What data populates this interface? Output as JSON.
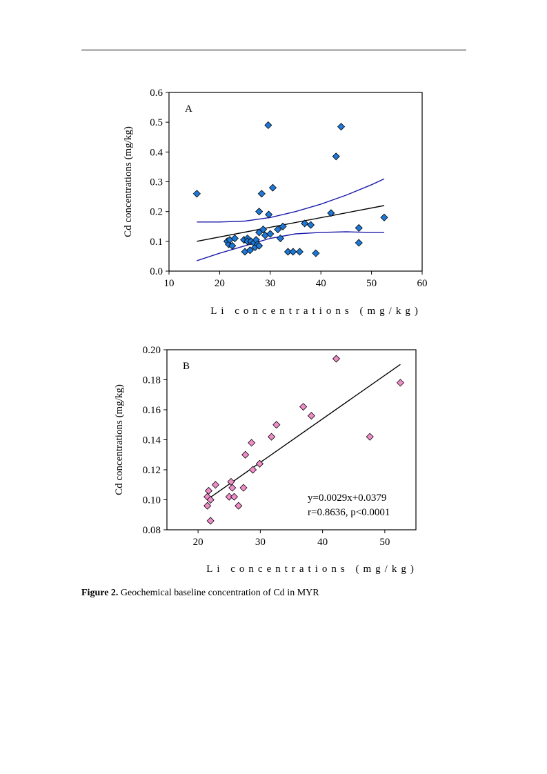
{
  "caption": {
    "label": "Figure 2.",
    "text": " Geochemical baseline concentration of Cd in MYR"
  },
  "chart_data": [
    {
      "type": "scatter",
      "panel_label": "A",
      "xlabel": "Li concentrations (mg/kg)",
      "ylabel": "Cd concentrations (mg/kg)",
      "xlim": [
        10,
        60
      ],
      "ylim": [
        0.0,
        0.6
      ],
      "xticks": [
        "10",
        "20",
        "30",
        "40",
        "50",
        "60"
      ],
      "yticks": [
        "0.0",
        "0.1",
        "0.2",
        "0.3",
        "0.4",
        "0.5",
        "0.6"
      ],
      "marker_color": "#1e78d6",
      "points": [
        {
          "x": 15.5,
          "y": 0.26
        },
        {
          "x": 21.5,
          "y": 0.1
        },
        {
          "x": 21.8,
          "y": 0.09
        },
        {
          "x": 22.0,
          "y": 0.105
        },
        {
          "x": 22.5,
          "y": 0.085
        },
        {
          "x": 23.0,
          "y": 0.11
        },
        {
          "x": 24.8,
          "y": 0.105
        },
        {
          "x": 25.0,
          "y": 0.065
        },
        {
          "x": 25.5,
          "y": 0.11
        },
        {
          "x": 25.5,
          "y": 0.1
        },
        {
          "x": 26.0,
          "y": 0.07
        },
        {
          "x": 26.2,
          "y": 0.1
        },
        {
          "x": 26.8,
          "y": 0.095
        },
        {
          "x": 27.0,
          "y": 0.08
        },
        {
          "x": 27.2,
          "y": 0.105
        },
        {
          "x": 27.5,
          "y": 0.09
        },
        {
          "x": 27.8,
          "y": 0.085
        },
        {
          "x": 27.8,
          "y": 0.13
        },
        {
          "x": 27.8,
          "y": 0.2
        },
        {
          "x": 28.3,
          "y": 0.26
        },
        {
          "x": 28.6,
          "y": 0.14
        },
        {
          "x": 29.0,
          "y": 0.12
        },
        {
          "x": 29.6,
          "y": 0.49
        },
        {
          "x": 29.7,
          "y": 0.19
        },
        {
          "x": 30.0,
          "y": 0.125
        },
        {
          "x": 30.5,
          "y": 0.28
        },
        {
          "x": 31.5,
          "y": 0.14
        },
        {
          "x": 32.0,
          "y": 0.11
        },
        {
          "x": 32.5,
          "y": 0.15
        },
        {
          "x": 33.5,
          "y": 0.065
        },
        {
          "x": 34.5,
          "y": 0.065
        },
        {
          "x": 35.8,
          "y": 0.065
        },
        {
          "x": 36.8,
          "y": 0.16
        },
        {
          "x": 38.0,
          "y": 0.155
        },
        {
          "x": 39.0,
          "y": 0.06
        },
        {
          "x": 42.0,
          "y": 0.195
        },
        {
          "x": 43.0,
          "y": 0.385
        },
        {
          "x": 44.0,
          "y": 0.485
        },
        {
          "x": 47.5,
          "y": 0.145
        },
        {
          "x": 47.5,
          "y": 0.095
        },
        {
          "x": 52.5,
          "y": 0.18
        }
      ],
      "fit_line": [
        {
          "x": 15.5,
          "y": 0.1
        },
        {
          "x": 52.5,
          "y": 0.22
        }
      ],
      "upper_band": [
        {
          "x": 15.5,
          "y": 0.165
        },
        {
          "x": 20,
          "y": 0.165
        },
        {
          "x": 25,
          "y": 0.168
        },
        {
          "x": 30,
          "y": 0.18
        },
        {
          "x": 35,
          "y": 0.2
        },
        {
          "x": 40,
          "y": 0.225
        },
        {
          "x": 45,
          "y": 0.255
        },
        {
          "x": 50,
          "y": 0.29
        },
        {
          "x": 52.5,
          "y": 0.31
        }
      ],
      "lower_band": [
        {
          "x": 15.5,
          "y": 0.035
        },
        {
          "x": 20,
          "y": 0.06
        },
        {
          "x": 25,
          "y": 0.085
        },
        {
          "x": 30,
          "y": 0.11
        },
        {
          "x": 35,
          "y": 0.125
        },
        {
          "x": 40,
          "y": 0.13
        },
        {
          "x": 45,
          "y": 0.132
        },
        {
          "x": 50,
          "y": 0.13
        },
        {
          "x": 52.5,
          "y": 0.13
        }
      ],
      "line_color": "#000000",
      "band_color": "#1a1aaa"
    },
    {
      "type": "scatter",
      "panel_label": "B",
      "xlabel": "Li concentrations (mg/kg)",
      "ylabel": "Cd concentrations (mg/kg)",
      "xlim": [
        15,
        55
      ],
      "ylim": [
        0.08,
        0.2
      ],
      "xticks": [
        "20",
        "30",
        "40",
        "50"
      ],
      "xtick_values": [
        20,
        30,
        40,
        50
      ],
      "yticks": [
        "0.08",
        "0.10",
        "0.12",
        "0.14",
        "0.16",
        "0.18",
        "0.20"
      ],
      "marker_color": "#f08cc8",
      "points": [
        {
          "x": 21.5,
          "y": 0.096
        },
        {
          "x": 21.5,
          "y": 0.102
        },
        {
          "x": 21.7,
          "y": 0.106
        },
        {
          "x": 22.0,
          "y": 0.1
        },
        {
          "x": 22.0,
          "y": 0.086
        },
        {
          "x": 22.8,
          "y": 0.11
        },
        {
          "x": 25.0,
          "y": 0.102
        },
        {
          "x": 25.3,
          "y": 0.112
        },
        {
          "x": 25.5,
          "y": 0.108
        },
        {
          "x": 25.8,
          "y": 0.102
        },
        {
          "x": 26.5,
          "y": 0.096
        },
        {
          "x": 27.3,
          "y": 0.108
        },
        {
          "x": 27.6,
          "y": 0.13
        },
        {
          "x": 28.6,
          "y": 0.138
        },
        {
          "x": 28.8,
          "y": 0.12
        },
        {
          "x": 29.9,
          "y": 0.124
        },
        {
          "x": 31.8,
          "y": 0.142
        },
        {
          "x": 32.6,
          "y": 0.15
        },
        {
          "x": 36.9,
          "y": 0.162
        },
        {
          "x": 38.2,
          "y": 0.156
        },
        {
          "x": 42.2,
          "y": 0.194
        },
        {
          "x": 47.6,
          "y": 0.142
        },
        {
          "x": 52.5,
          "y": 0.178
        }
      ],
      "fit_line": [
        {
          "x": 21.8,
          "y": 0.1011
        },
        {
          "x": 52.5,
          "y": 0.1902
        }
      ],
      "line_color": "#000000",
      "annotation": [
        "y=0.0029x+0.0379",
        "r=0.8636, p<0.0001"
      ]
    }
  ]
}
